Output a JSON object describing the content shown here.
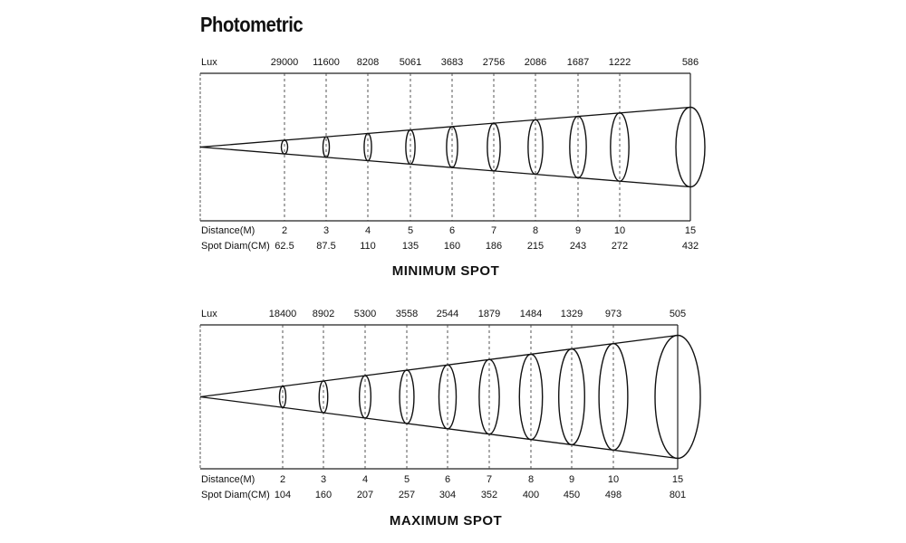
{
  "title": "Photometric",
  "row_labels": {
    "lux": "Lux",
    "distance": "Distance(M)",
    "spot_diam": "Spot Diam(CM)"
  },
  "panels": [
    {
      "caption": "MINIMUM SPOT",
      "lux": [
        "29000",
        "11600",
        "8208",
        "5061",
        "3683",
        "2756",
        "2086",
        "1687",
        "1222",
        "586"
      ],
      "distance": [
        "2",
        "3",
        "4",
        "5",
        "6",
        "7",
        "8",
        "9",
        "10",
        "15"
      ],
      "spot_diam": [
        "62.5",
        "87.5",
        "110",
        "135",
        "160",
        "186",
        "215",
        "243",
        "272",
        "432"
      ]
    },
    {
      "caption": "MAXIMUM SPOT",
      "lux": [
        "18400",
        "8902",
        "5300",
        "3558",
        "2544",
        "1879",
        "1484",
        "1329",
        "973",
        "505"
      ],
      "distance": [
        "2",
        "3",
        "4",
        "5",
        "6",
        "7",
        "8",
        "9",
        "10",
        "15"
      ],
      "spot_diam": [
        "104",
        "160",
        "207",
        "257",
        "304",
        "352",
        "400",
        "450",
        "498",
        "801"
      ]
    }
  ]
}
